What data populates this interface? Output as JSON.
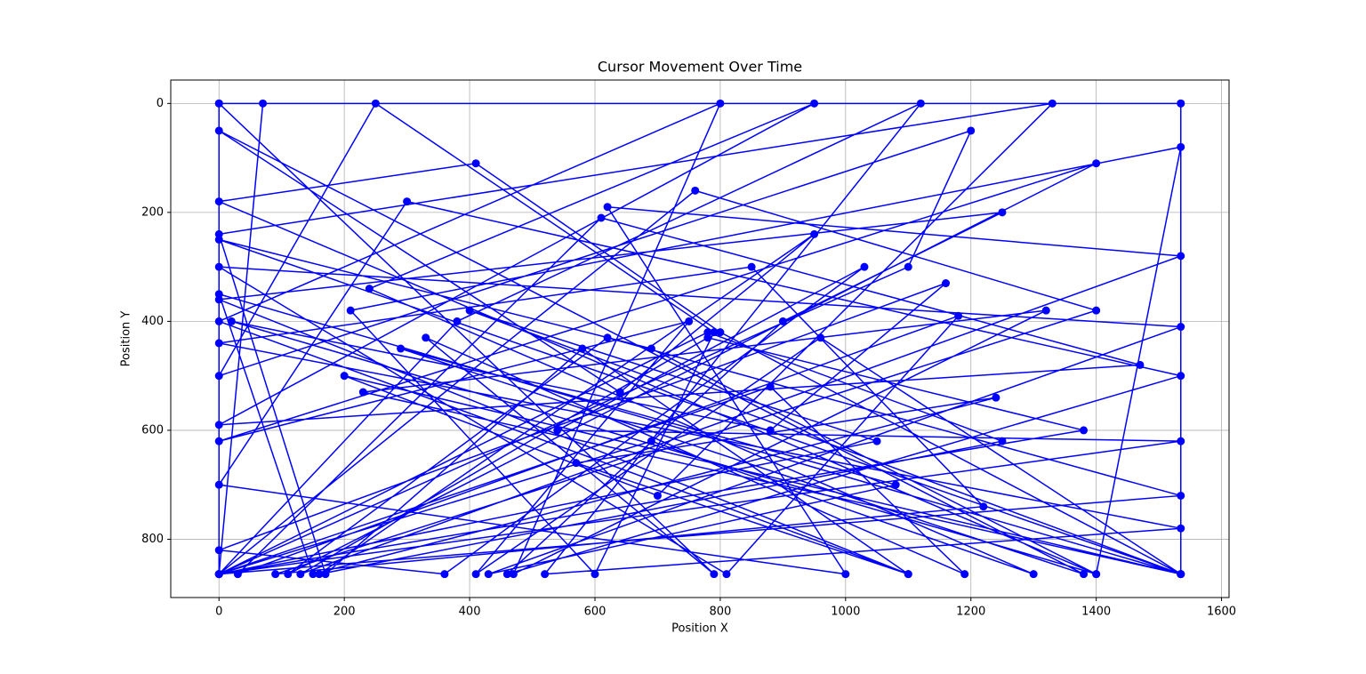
{
  "chart_data": {
    "type": "line",
    "title": "Cursor Movement Over Time",
    "x_label": "Position X",
    "y_label": "Position Y",
    "x": [
      0,
      0,
      70,
      1535,
      1535,
      800,
      410,
      0,
      1400,
      1535,
      210,
      600,
      790,
      250,
      0,
      1200,
      1100,
      0,
      1380,
      780,
      130,
      1535,
      620,
      1000,
      0,
      300,
      1535,
      460,
      900,
      1250,
      0,
      1100,
      580,
      170,
      0,
      1330,
      700,
      200,
      1535,
      400,
      1050,
      0,
      760,
      1400,
      90,
      1220,
      850,
      0,
      1535,
      520,
      1120,
      380,
      0,
      690,
      1300,
      240,
      950,
      0,
      1470,
      610,
      30,
      1180,
      810,
      0,
      1535,
      430,
      1080,
      290,
      1380,
      0,
      640,
      950,
      160,
      1250,
      780,
      0,
      1535,
      540,
      1030,
      360,
      0,
      1160,
      880,
      20,
      1400,
      690,
      0,
      1535,
      230,
      1320,
      470,
      800,
      0,
      1100,
      570,
      1240,
      150,
      0,
      1535,
      960,
      410,
      750,
      0,
      1400,
      110,
      620,
      1535,
      0,
      880,
      1190,
      330,
      790,
      0,
      1535
    ],
    "series": [
      {
        "color": "#0000ff",
        "values": [
          0,
          864,
          0,
          0,
          864,
          420,
          110,
          180,
          864,
          80,
          380,
          864,
          420,
          0,
          500,
          50,
          300,
          864,
          600,
          430,
          864,
          280,
          190,
          864,
          700,
          180,
          500,
          864,
          400,
          200,
          360,
          864,
          450,
          864,
          240,
          0,
          720,
          500,
          864,
          380,
          620,
          864,
          160,
          380,
          864,
          740,
          300,
          440,
          780,
          864,
          0,
          400,
          864,
          620,
          864,
          340,
          0,
          590,
          480,
          210,
          864,
          390,
          864,
          300,
          410,
          864,
          700,
          450,
          864,
          50,
          530,
          240,
          864,
          620,
          420,
          864,
          620,
          600,
          300,
          864,
          820,
          330,
          600,
          400,
          864,
          450,
          250,
          864,
          530,
          380,
          864,
          0,
          400,
          864,
          660,
          540,
          864,
          350,
          864,
          430,
          864,
          400,
          620,
          110,
          864,
          430,
          720,
          864,
          520,
          864,
          430,
          864,
          0,
          0
        ]
      }
    ],
    "xlim": [
      -77,
      1612
    ],
    "ylim": [
      907,
      -43
    ],
    "xticks": [
      0,
      200,
      400,
      600,
      800,
      1000,
      1200,
      1400,
      1600
    ],
    "yticks": [
      0,
      200,
      400,
      600,
      800
    ],
    "grid": true,
    "markers": true
  }
}
